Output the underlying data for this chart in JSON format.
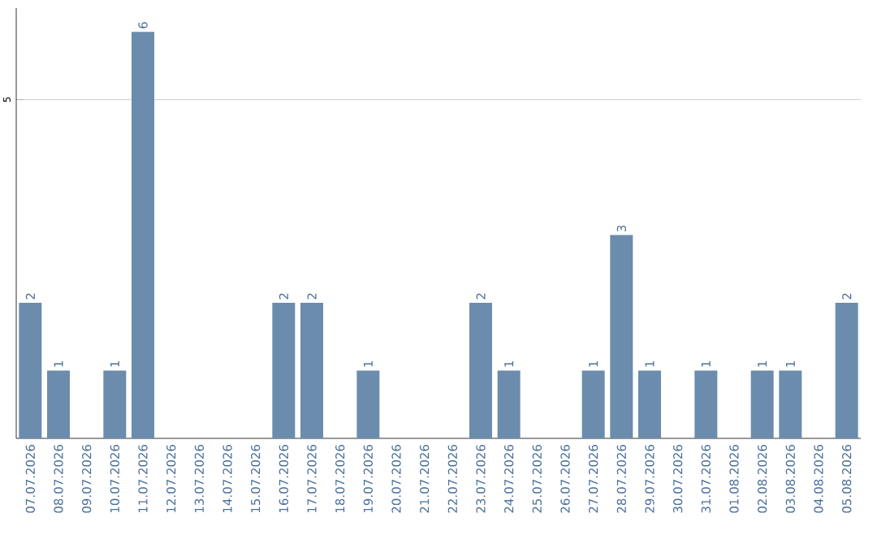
{
  "chart_data": {
    "type": "bar",
    "categories": [
      "07.07.2026",
      "08.07.2026",
      "09.07.2026",
      "10.07.2026",
      "11.07.2026",
      "12.07.2026",
      "13.07.2026",
      "14.07.2026",
      "15.07.2026",
      "16.07.2026",
      "17.07.2026",
      "18.07.2026",
      "19.07.2026",
      "20.07.2026",
      "21.07.2026",
      "22.07.2026",
      "23.07.2026",
      "24.07.2026",
      "25.07.2026",
      "26.07.2026",
      "27.07.2026",
      "28.07.2026",
      "29.07.2026",
      "30.07.2026",
      "31.07.2026",
      "01.08.2026",
      "02.08.2026",
      "03.08.2026",
      "04.08.2026",
      "05.08.2026"
    ],
    "values": [
      2,
      1,
      0,
      1,
      6,
      0,
      0,
      0,
      0,
      2,
      2,
      0,
      1,
      0,
      0,
      0,
      2,
      1,
      0,
      0,
      1,
      3,
      1,
      0,
      1,
      0,
      1,
      1,
      0,
      2
    ],
    "value_labels": [
      "2",
      "1",
      null,
      "1",
      "6",
      null,
      null,
      null,
      null,
      "2",
      "2",
      null,
      "1",
      null,
      null,
      null,
      "2",
      "1",
      null,
      null,
      "1",
      "3",
      "1",
      null,
      "1",
      null,
      "1",
      "1",
      null,
      "2"
    ],
    "color": "#6b8cad",
    "ylim": [
      0,
      6.35
    ],
    "yticks": [
      5
    ],
    "grid": "y"
  }
}
